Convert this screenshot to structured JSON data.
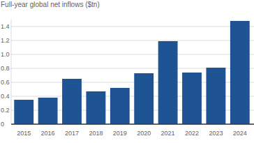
{
  "chart_data": {
    "type": "bar",
    "title": "Full-year global net inflows ($tn)",
    "categories": [
      "2015",
      "2016",
      "2017",
      "2018",
      "2019",
      "2020",
      "2021",
      "2022",
      "2023",
      "2024"
    ],
    "values": [
      0.35,
      0.38,
      0.65,
      0.47,
      0.52,
      0.73,
      1.19,
      0.74,
      0.81,
      1.48
    ],
    "color": "#1f5494",
    "ylim": [
      0,
      1.5
    ],
    "yticks": [
      0,
      0.2,
      0.4,
      0.6,
      0.8,
      {
        "value": 1,
        "label": "1.0"
      },
      1.2,
      1.4
    ],
    "grid": true
  }
}
